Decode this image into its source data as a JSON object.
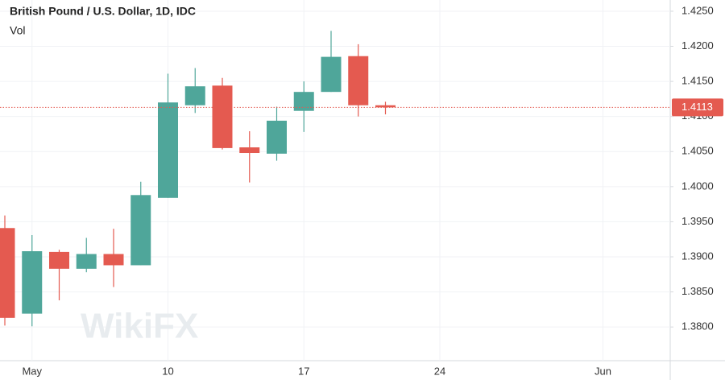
{
  "chart_data": {
    "type": "candlestick",
    "title": "British Pound / U.S. Dollar, 1D, IDC",
    "subtitle": "Vol",
    "watermark": "WikiFX",
    "categories": [
      null,
      "May",
      null,
      null,
      null,
      null,
      "10",
      null,
      null,
      null,
      null,
      "17",
      null,
      null,
      null,
      null,
      "24",
      null,
      null,
      null,
      null,
      null,
      "Jun",
      null,
      null
    ],
    "open": [
      1.3941,
      1.3819,
      1.3907,
      1.3883,
      1.3904,
      1.3888,
      1.3984,
      1.4116,
      1.4144,
      1.4056,
      1.4047,
      1.4108,
      1.4135,
      1.4186,
      1.4116,
      null,
      null,
      null,
      null,
      null,
      null,
      null,
      null,
      null,
      null
    ],
    "high": [
      1.3959,
      1.3931,
      1.391,
      1.3927,
      1.394,
      1.4007,
      1.4161,
      1.4169,
      1.4155,
      1.4079,
      1.4114,
      1.415,
      1.4222,
      1.4203,
      1.4121,
      null,
      null,
      null,
      null,
      null,
      null,
      null,
      null,
      null,
      null
    ],
    "low": [
      1.3802,
      1.3801,
      1.3838,
      1.3878,
      1.3857,
      1.3888,
      1.3984,
      1.4105,
      1.4053,
      1.4006,
      1.4037,
      1.4078,
      1.4135,
      1.41,
      1.4103,
      null,
      null,
      null,
      null,
      null,
      null,
      null,
      null,
      null,
      null
    ],
    "close": [
      1.3813,
      1.3908,
      1.3883,
      1.3904,
      1.3888,
      1.3988,
      1.412,
      1.4143,
      1.4055,
      1.4048,
      1.4094,
      1.4135,
      1.4185,
      1.4116,
      1.4113,
      null,
      null,
      null,
      null,
      null,
      null,
      null,
      null,
      null,
      null
    ],
    "up_color": "#4fa69a",
    "down_color": "#e45a50",
    "last_price": {
      "value": 1.4113,
      "label": "1.4113"
    },
    "ylim": [
      1.3752,
      1.4266
    ],
    "yticks": [
      {
        "value": 1.38,
        "label": "1.3800"
      },
      {
        "value": 1.385,
        "label": "1.3850"
      },
      {
        "value": 1.39,
        "label": "1.3900"
      },
      {
        "value": 1.395,
        "label": "1.3950"
      },
      {
        "value": 1.4,
        "label": "1.4000"
      },
      {
        "value": 1.405,
        "label": "1.4050"
      },
      {
        "value": 1.41,
        "label": "1.4100"
      },
      {
        "value": 1.415,
        "label": "1.4150"
      },
      {
        "value": 1.42,
        "label": "1.4200"
      },
      {
        "value": 1.425,
        "label": "1.4250"
      }
    ],
    "grid": true
  }
}
